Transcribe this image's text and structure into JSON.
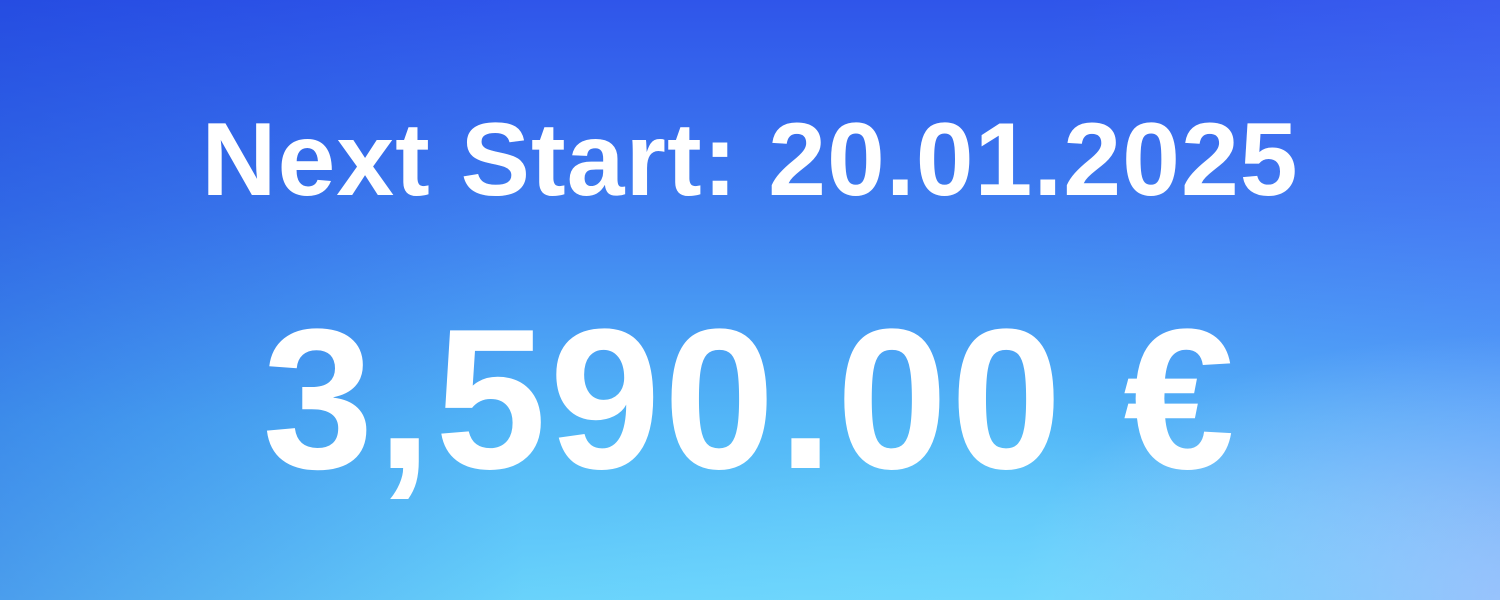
{
  "banner": {
    "start_label": "Next Start:",
    "start_date": "20.01.2025",
    "price": "3,590.00 €"
  },
  "colors": {
    "text": "#ffffff",
    "gradient_top": "#2f55ea",
    "gradient_bottom": "#68d2fb"
  }
}
